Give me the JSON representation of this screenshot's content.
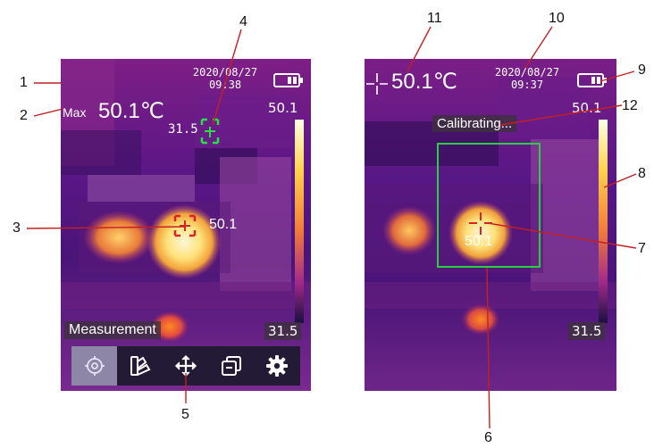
{
  "left_screen": {
    "date": "2020/08/27",
    "time": "09:38",
    "max_label": "Max",
    "max_temp": "50.1℃",
    "center_temp": "31.5",
    "hotspot_temp": "50.1",
    "scale_max": "50.1",
    "scale_min": "31.5",
    "mode_label": "Measurement",
    "toolbar": [
      {
        "icon": "target-icon",
        "active": true
      },
      {
        "icon": "palette-icon",
        "active": false
      },
      {
        "icon": "move-icon",
        "active": false
      },
      {
        "icon": "layers-icon",
        "active": false
      },
      {
        "icon": "gear-icon",
        "active": false
      }
    ]
  },
  "right_screen": {
    "date": "2020/08/27",
    "time": "09:37",
    "center_temp_readout": "50.1℃",
    "status": "Calibrating...",
    "box_temp": "50.1",
    "scale_max": "50.1",
    "scale_min": "31.5"
  },
  "callouts": [
    "1",
    "2",
    "3",
    "4",
    "5",
    "6",
    "7",
    "8",
    "9",
    "10",
    "11",
    "12"
  ],
  "colors": {
    "crosshair_red": "#e0202a",
    "crosshair_green": "#27e041",
    "box_green": "#27d040",
    "leader_red": "#c42020",
    "toolbar_bg": "#231a36",
    "toolbar_active": "#8d86a6"
  }
}
